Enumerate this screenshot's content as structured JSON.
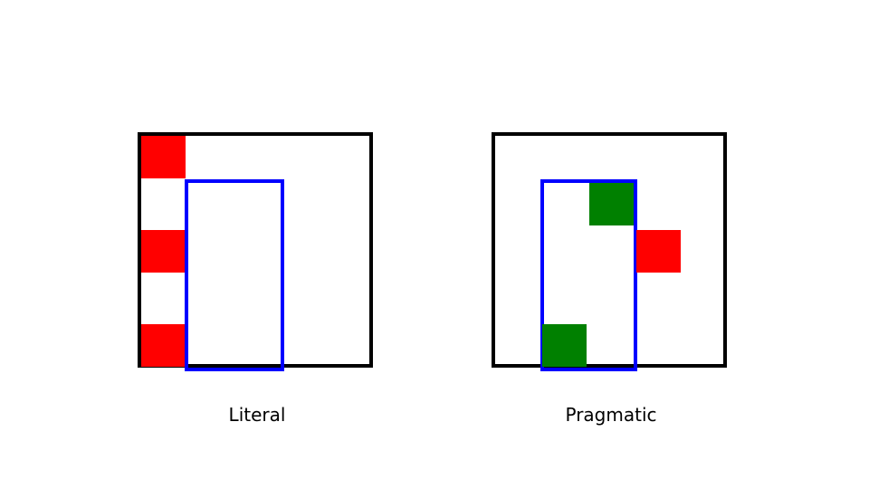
{
  "panels": [
    {
      "caption": "Literal"
    },
    {
      "caption": "Pragmatic"
    }
  ],
  "colors": {
    "border": "#000000",
    "highlight_box": "#0000ff",
    "red_cell": "#ff0000",
    "green_cell": "#008000"
  }
}
